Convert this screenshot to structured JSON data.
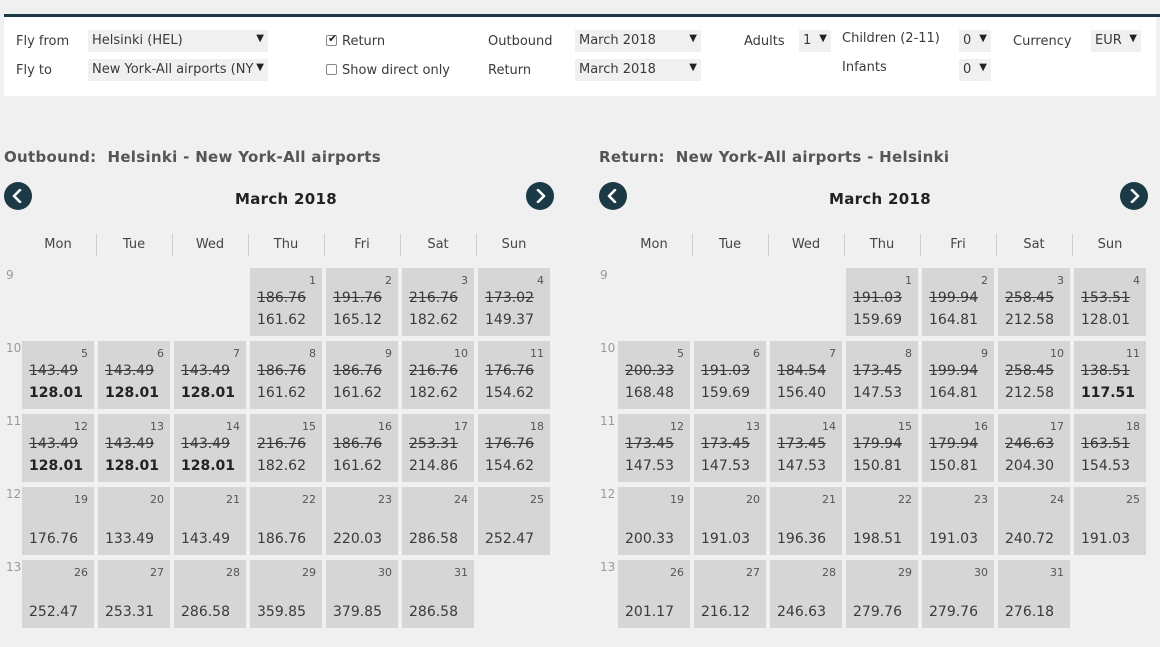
{
  "search": {
    "fly_from_label": "Fly from",
    "fly_from_value": "Helsinki (HEL)",
    "fly_to_label": "Fly to",
    "fly_to_value": "New York-All airports (NY",
    "return_label": "Return",
    "return_checked": true,
    "direct_label": "Show direct only",
    "direct_checked": false,
    "outbound_label": "Outbound",
    "outbound_value": "March 2018",
    "return_date_label": "Return",
    "return_date_value": "March 2018",
    "adults_label": "Adults",
    "adults_value": "1",
    "children_label": "Children (2-11)",
    "children_value": "0",
    "infants_label": "Infants",
    "infants_value": "0",
    "currency_label": "Currency",
    "currency_value": "EUR"
  },
  "weekdays": [
    "Mon",
    "Tue",
    "Wed",
    "Thu",
    "Fri",
    "Sat",
    "Sun"
  ],
  "weeks": [
    "9",
    "10",
    "11",
    "12",
    "13"
  ],
  "calendars": [
    {
      "title_label": "Outbound:",
      "route": "Helsinki - New York-All airports",
      "month": "March 2018",
      "days": [
        {
          "day": "1",
          "old": "186.76",
          "price": "161.62",
          "best": false
        },
        {
          "day": "2",
          "old": "191.76",
          "price": "165.12",
          "best": false
        },
        {
          "day": "3",
          "old": "216.76",
          "price": "182.62",
          "best": false
        },
        {
          "day": "4",
          "old": "173.02",
          "price": "149.37",
          "best": false
        },
        {
          "day": "5",
          "old": "143.49",
          "price": "128.01",
          "best": true
        },
        {
          "day": "6",
          "old": "143.49",
          "price": "128.01",
          "best": true
        },
        {
          "day": "7",
          "old": "143.49",
          "price": "128.01",
          "best": true
        },
        {
          "day": "8",
          "old": "186.76",
          "price": "161.62",
          "best": false
        },
        {
          "day": "9",
          "old": "186.76",
          "price": "161.62",
          "best": false
        },
        {
          "day": "10",
          "old": "216.76",
          "price": "182.62",
          "best": false
        },
        {
          "day": "11",
          "old": "176.76",
          "price": "154.62",
          "best": false
        },
        {
          "day": "12",
          "old": "143.49",
          "price": "128.01",
          "best": true
        },
        {
          "day": "13",
          "old": "143.49",
          "price": "128.01",
          "best": true
        },
        {
          "day": "14",
          "old": "143.49",
          "price": "128.01",
          "best": true
        },
        {
          "day": "15",
          "old": "216.76",
          "price": "182.62",
          "best": false
        },
        {
          "day": "16",
          "old": "186.76",
          "price": "161.62",
          "best": false
        },
        {
          "day": "17",
          "old": "253.31",
          "price": "214.86",
          "best": false
        },
        {
          "day": "18",
          "old": "176.76",
          "price": "154.62",
          "best": false
        },
        {
          "day": "19",
          "old": "",
          "price": "176.76",
          "best": false
        },
        {
          "day": "20",
          "old": "",
          "price": "133.49",
          "best": false
        },
        {
          "day": "21",
          "old": "",
          "price": "143.49",
          "best": false
        },
        {
          "day": "22",
          "old": "",
          "price": "186.76",
          "best": false
        },
        {
          "day": "23",
          "old": "",
          "price": "220.03",
          "best": false
        },
        {
          "day": "24",
          "old": "",
          "price": "286.58",
          "best": false
        },
        {
          "day": "25",
          "old": "",
          "price": "252.47",
          "best": false
        },
        {
          "day": "26",
          "old": "",
          "price": "252.47",
          "best": false
        },
        {
          "day": "27",
          "old": "",
          "price": "253.31",
          "best": false
        },
        {
          "day": "28",
          "old": "",
          "price": "286.58",
          "best": false
        },
        {
          "day": "29",
          "old": "",
          "price": "359.85",
          "best": false
        },
        {
          "day": "30",
          "old": "",
          "price": "379.85",
          "best": false
        },
        {
          "day": "31",
          "old": "",
          "price": "286.58",
          "best": false
        }
      ]
    },
    {
      "title_label": "Return:",
      "route": "New York-All airports - Helsinki",
      "month": "March 2018",
      "days": [
        {
          "day": "1",
          "old": "191.03",
          "price": "159.69",
          "best": false
        },
        {
          "day": "2",
          "old": "199.94",
          "price": "164.81",
          "best": false
        },
        {
          "day": "3",
          "old": "258.45",
          "price": "212.58",
          "best": false
        },
        {
          "day": "4",
          "old": "153.51",
          "price": "128.01",
          "best": false
        },
        {
          "day": "5",
          "old": "200.33",
          "price": "168.48",
          "best": false
        },
        {
          "day": "6",
          "old": "191.03",
          "price": "159.69",
          "best": false
        },
        {
          "day": "7",
          "old": "184.54",
          "price": "156.40",
          "best": false
        },
        {
          "day": "8",
          "old": "173.45",
          "price": "147.53",
          "best": false
        },
        {
          "day": "9",
          "old": "199.94",
          "price": "164.81",
          "best": false
        },
        {
          "day": "10",
          "old": "258.45",
          "price": "212.58",
          "best": false
        },
        {
          "day": "11",
          "old": "138.51",
          "price": "117.51",
          "best": true
        },
        {
          "day": "12",
          "old": "173.45",
          "price": "147.53",
          "best": false
        },
        {
          "day": "13",
          "old": "173.45",
          "price": "147.53",
          "best": false
        },
        {
          "day": "14",
          "old": "173.45",
          "price": "147.53",
          "best": false
        },
        {
          "day": "15",
          "old": "179.94",
          "price": "150.81",
          "best": false
        },
        {
          "day": "16",
          "old": "179.94",
          "price": "150.81",
          "best": false
        },
        {
          "day": "17",
          "old": "246.63",
          "price": "204.30",
          "best": false
        },
        {
          "day": "18",
          "old": "163.51",
          "price": "154.53",
          "best": false
        },
        {
          "day": "19",
          "old": "",
          "price": "200.33",
          "best": false
        },
        {
          "day": "20",
          "old": "",
          "price": "191.03",
          "best": false
        },
        {
          "day": "21",
          "old": "",
          "price": "196.36",
          "best": false
        },
        {
          "day": "22",
          "old": "",
          "price": "198.51",
          "best": false
        },
        {
          "day": "23",
          "old": "",
          "price": "191.03",
          "best": false
        },
        {
          "day": "24",
          "old": "",
          "price": "240.72",
          "best": false
        },
        {
          "day": "25",
          "old": "",
          "price": "191.03",
          "best": false
        },
        {
          "day": "26",
          "old": "",
          "price": "201.17",
          "best": false
        },
        {
          "day": "27",
          "old": "",
          "price": "216.12",
          "best": false
        },
        {
          "day": "28",
          "old": "",
          "price": "246.63",
          "best": false
        },
        {
          "day": "29",
          "old": "",
          "price": "279.76",
          "best": false
        },
        {
          "day": "30",
          "old": "",
          "price": "279.76",
          "best": false
        },
        {
          "day": "31",
          "old": "",
          "price": "276.18",
          "best": false
        }
      ]
    }
  ]
}
